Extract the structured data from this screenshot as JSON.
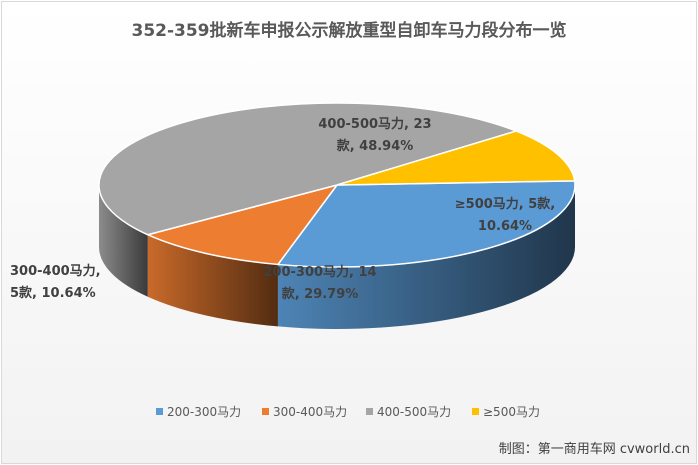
{
  "title": "352-359批新车申报公示解放重型自卸车马力段分布一览",
  "credit": "制图：第一商用车网 cvworld.cn",
  "chart_data": {
    "type": "pie",
    "title": "352-359批新车申报公示解放重型自卸车马力段分布一览",
    "legend_position": "bottom",
    "slices": [
      {
        "name": "200-300马力",
        "value": 14,
        "percent": "29.79%",
        "label_line1": "200-300马力, 14",
        "label_line2": "款, 29.79%",
        "color": "#5b9bd5"
      },
      {
        "name": "300-400马力",
        "value": 5,
        "percent": "10.64%",
        "label_line1": "300-400马力,",
        "label_line2": "5款, 10.64%",
        "color": "#ed7d31"
      },
      {
        "name": "400-500马力",
        "value": 23,
        "percent": "48.94%",
        "label_line1": "400-500马力, 23",
        "label_line2": "款, 48.94%",
        "color": "#a5a5a5"
      },
      {
        "name": "≥500马力",
        "value": 5,
        "percent": "10.64%",
        "label_line1": "≥500马力, 5款,",
        "label_line2": "10.64%",
        "color": "#ffc000"
      }
    ],
    "legend": [
      "200-300马力",
      "300-400马力",
      "400-500马力",
      "≥500马力"
    ]
  }
}
